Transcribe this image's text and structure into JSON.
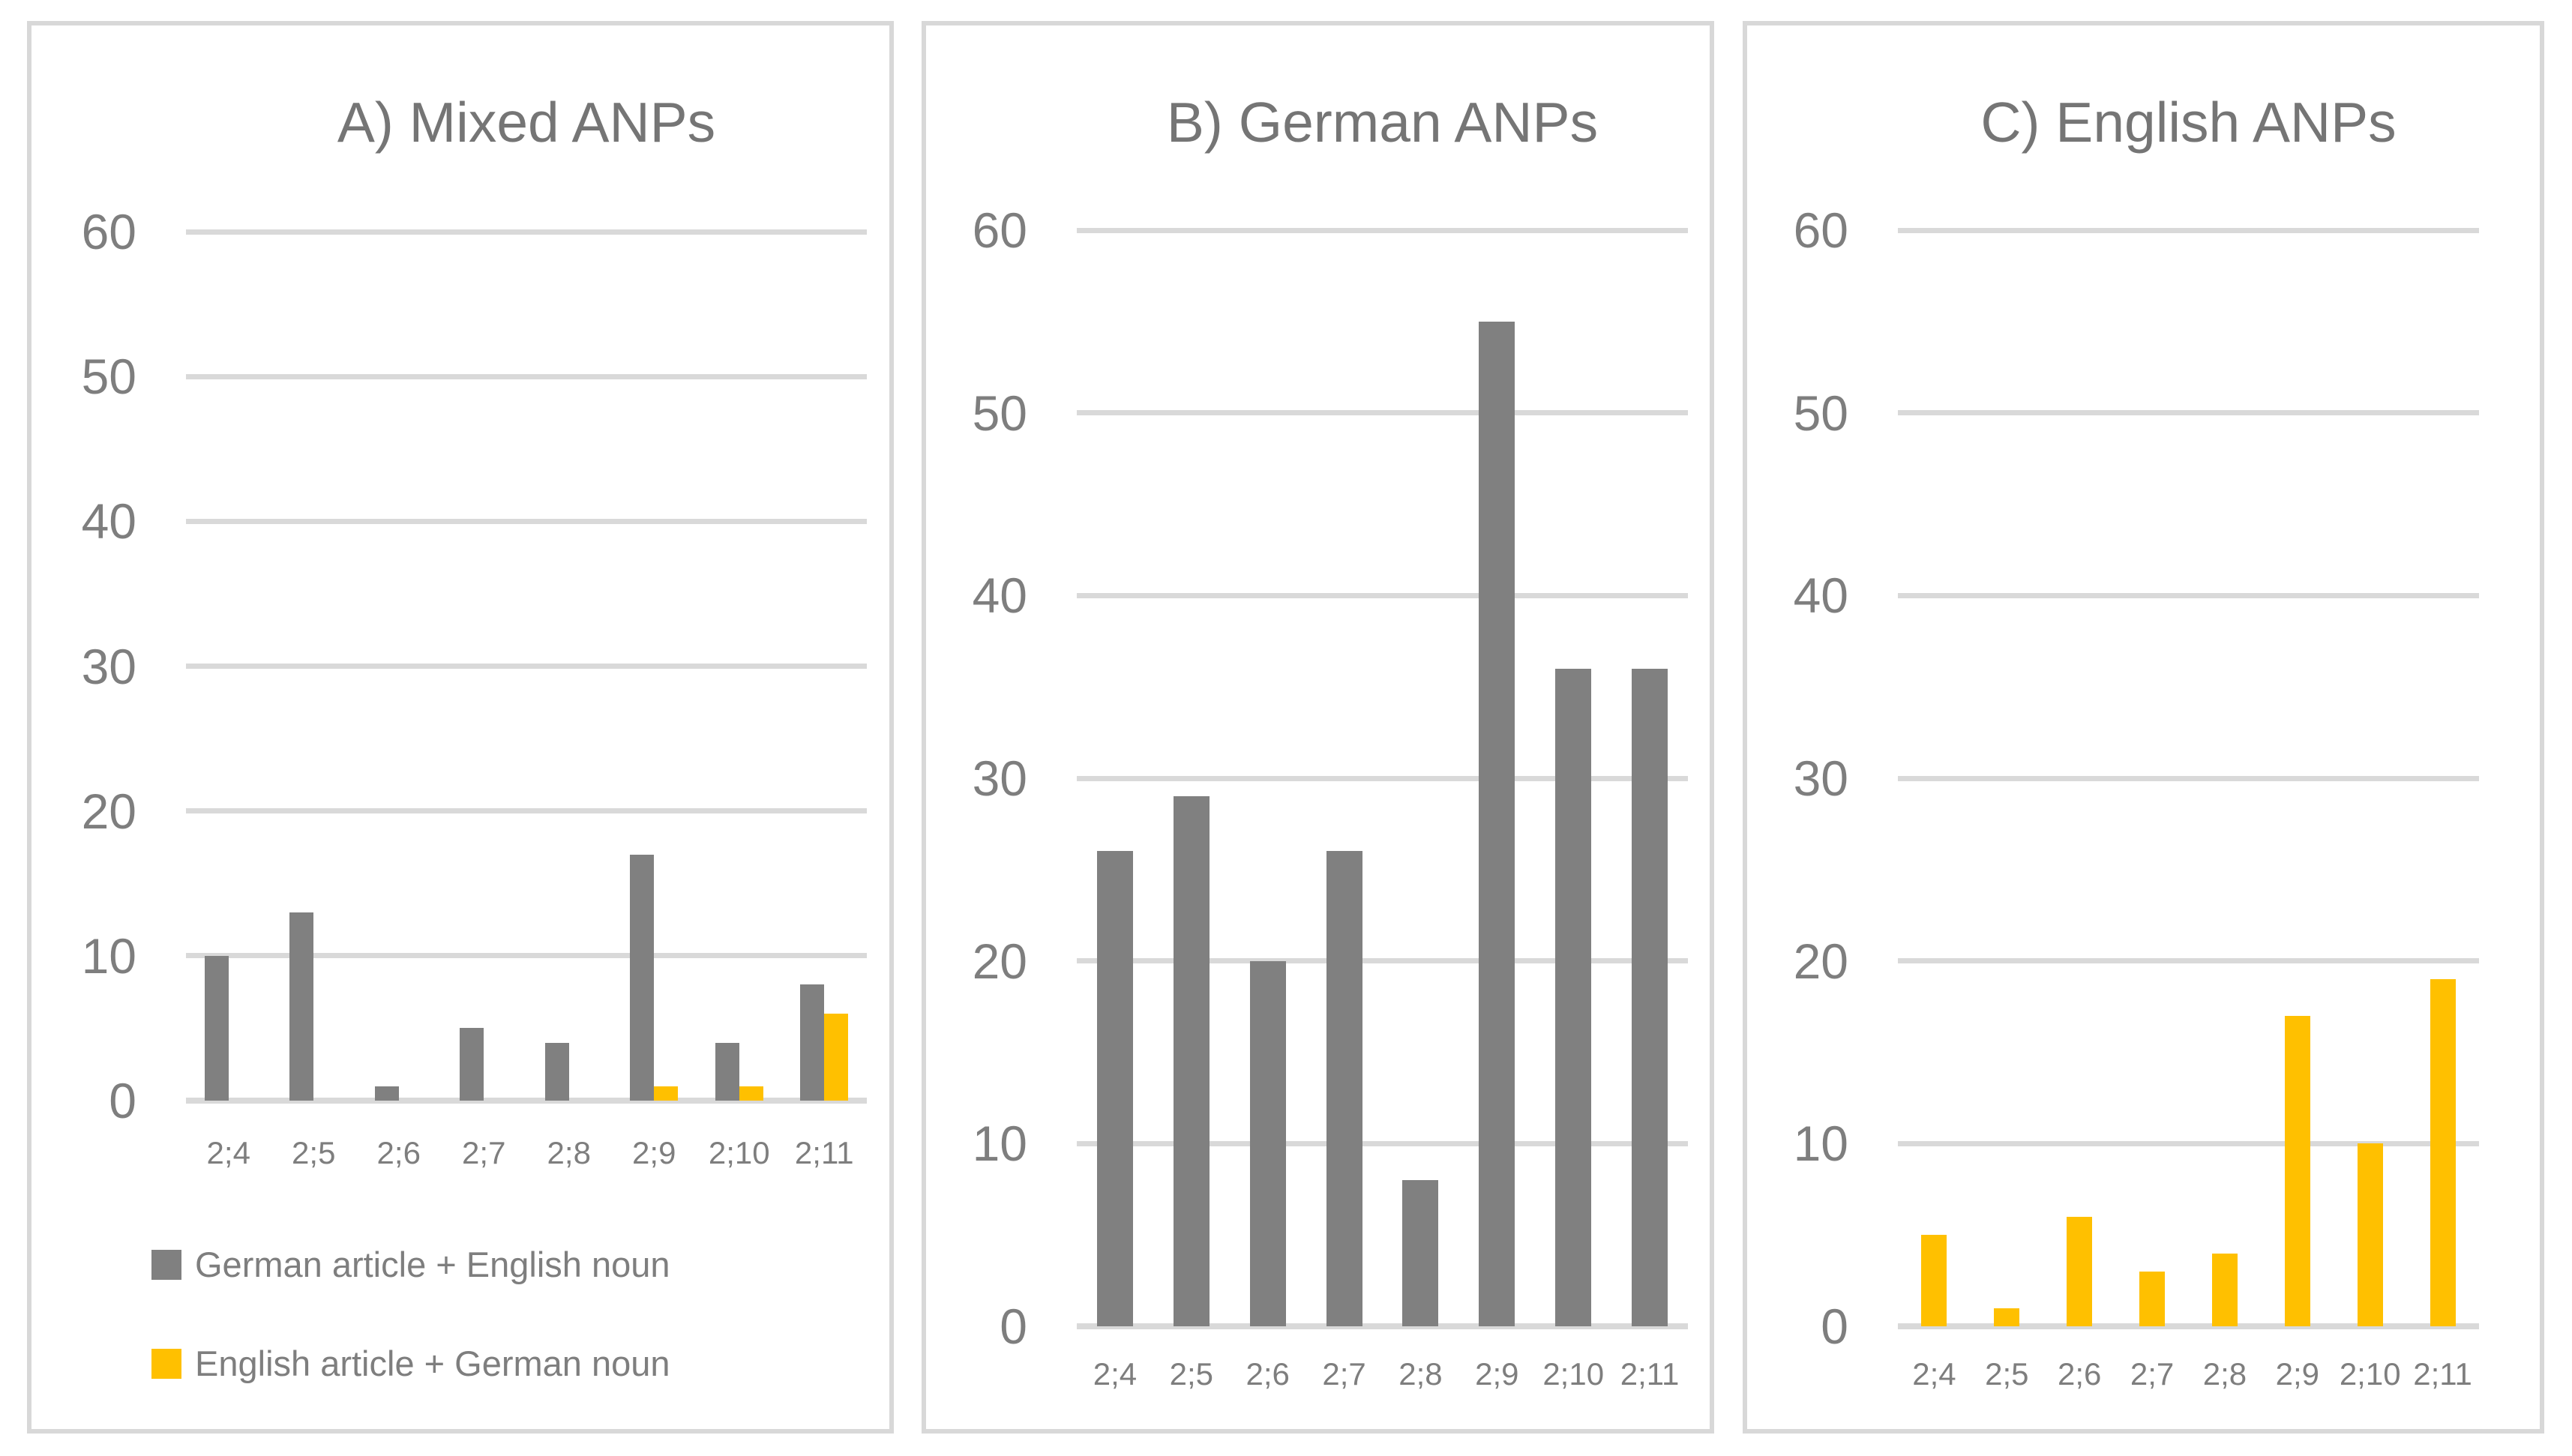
{
  "page": {
    "background": "#ffffff",
    "panel_border_color": "#d8d8d8",
    "gridline_color": "#d9d9d9",
    "text_color": "#7e7e7e"
  },
  "legend": {
    "items": [
      {
        "label": "German article + English noun",
        "color": "#808080"
      },
      {
        "label": "English article + German noun",
        "color": "#FFC000"
      }
    ]
  },
  "chart_data": [
    {
      "type": "bar",
      "title": "A) Mixed ANPs",
      "categories": [
        "2;4",
        "2;5",
        "2;6",
        "2;7",
        "2;8",
        "2;9",
        "2;10",
        "2;11"
      ],
      "series": [
        {
          "name": "German article + English noun",
          "color": "#808080",
          "values": [
            10,
            13,
            1,
            5,
            4,
            17,
            4,
            8
          ]
        },
        {
          "name": "English article + German noun",
          "color": "#FFC000",
          "values": [
            0,
            0,
            0,
            0,
            0,
            1,
            1,
            6
          ]
        }
      ],
      "xlabel": "",
      "ylabel": "",
      "ylim": [
        0,
        60
      ],
      "yticks": [
        0,
        10,
        20,
        30,
        40,
        50,
        60
      ],
      "grid": true,
      "legend_position": "bottom-left"
    },
    {
      "type": "bar",
      "title": "B) German ANPs",
      "categories": [
        "2;4",
        "2;5",
        "2;6",
        "2;7",
        "2;8",
        "2;9",
        "2;10",
        "2;11"
      ],
      "series": [
        {
          "name": "German article + English noun",
          "color": "#808080",
          "values": [
            26,
            29,
            20,
            26,
            8,
            55,
            36,
            36
          ]
        }
      ],
      "xlabel": "",
      "ylabel": "",
      "ylim": [
        0,
        60
      ],
      "yticks": [
        0,
        10,
        20,
        30,
        40,
        50,
        60
      ],
      "grid": true,
      "legend_position": "none"
    },
    {
      "type": "bar",
      "title": "C) English ANPs",
      "categories": [
        "2;4",
        "2;5",
        "2;6",
        "2;7",
        "2;8",
        "2;9",
        "2;10",
        "2;11"
      ],
      "series": [
        {
          "name": "English article + German noun",
          "color": "#FFC000",
          "values": [
            5,
            1,
            6,
            3,
            4,
            17,
            10,
            19
          ]
        }
      ],
      "xlabel": "",
      "ylabel": "",
      "ylim": [
        0,
        60
      ],
      "yticks": [
        0,
        10,
        20,
        30,
        40,
        50,
        60
      ],
      "grid": true,
      "legend_position": "none"
    }
  ]
}
